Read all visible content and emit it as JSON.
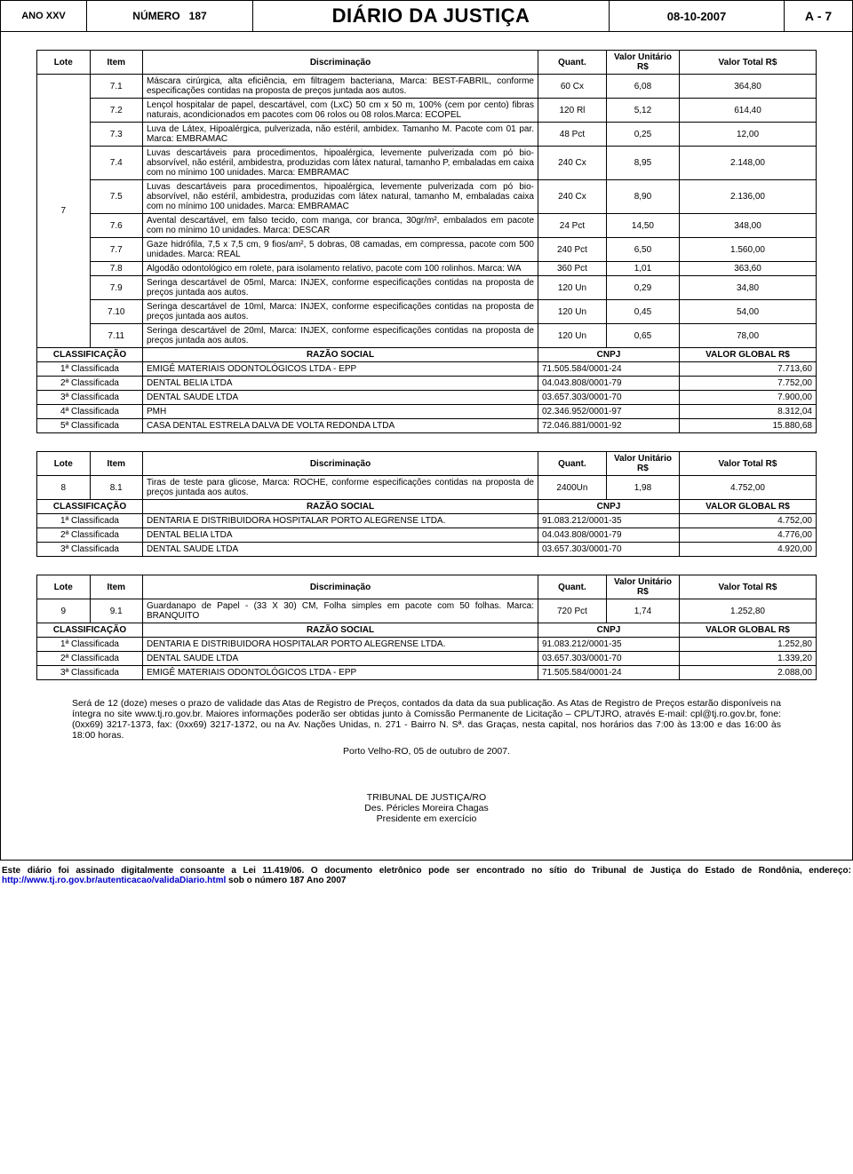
{
  "header": {
    "ano": "ANO XXV",
    "numero_label": "NÚMERO",
    "numero": "187",
    "title": "DIÁRIO DA JUSTIÇA",
    "date": "08-10-2007",
    "page_prefix": "A",
    "page_sep": "-",
    "page_num": "7"
  },
  "columns": {
    "lote": "Lote",
    "item": "Item",
    "disc": "Discriminação",
    "quant": "Quant.",
    "unit": "Valor Unitário R$",
    "total": "Valor Total R$"
  },
  "class_columns": {
    "class": "CLASSIFICAÇÃO",
    "razao": "RAZÃO SOCIAL",
    "cnpj": "CNPJ",
    "valor": "VALOR GLOBAL R$"
  },
  "table1": {
    "lote": "7",
    "rows": [
      {
        "item": "7.1",
        "disc": "Máscara cirúrgica, alta eficiência, em filtragem bacteriana, Marca: BEST-FABRIL, conforme especificações contidas na proposta de preços juntada aos autos.",
        "quant": "60 Cx",
        "unit": "6,08",
        "total": "364,80"
      },
      {
        "item": "7.2",
        "disc": "Lençol hospitalar de papel, descartável, com (LxC) 50 cm x 50 m, 100% (cem por cento) fibras naturais, acondicionados em pacotes com 06 rolos ou 08 rolos.Marca: ECOPEL",
        "quant": "120 Rl",
        "unit": "5,12",
        "total": "614,40"
      },
      {
        "item": "7.3",
        "disc": "Luva de Látex, Hipoalérgica, pulverizada, não estéril, ambidex. Tamanho M. Pacote com 01 par. Marca: EMBRAMAC",
        "quant": "48 Pct",
        "unit": "0,25",
        "total": "12,00"
      },
      {
        "item": "7.4",
        "disc": "Luvas descartáveis para procedimentos, hipoalérgica, levemente pulverizada com pó bio-absorvível, não estéril, ambidestra, produzidas com látex natural, tamanho P, embaladas em caixa com no mínimo 100 unidades. Marca: EMBRAMAC",
        "quant": "240 Cx",
        "unit": "8,95",
        "total": "2.148,00"
      },
      {
        "item": "7.5",
        "disc": "Luvas descartáveis para procedimentos, hipoalérgica, levemente pulverizada com pó bio-absorvível, não estéril, ambidestra, produzidas com látex natural, tamanho M, embaladas caixa com no mínimo 100 unidades. Marca: EMBRAMAC",
        "quant": "240 Cx",
        "unit": "8,90",
        "total": "2.136,00"
      },
      {
        "item": "7.6",
        "disc": "Avental descartável, em falso tecido, com manga, cor branca, 30gr/m², embalados em pacote com no mínimo 10 unidades. Marca: DESCAR",
        "quant": "24 Pct",
        "unit": "14,50",
        "total": "348,00"
      },
      {
        "item": "7.7",
        "disc": "Gaze hidrófila, 7,5 x 7,5 cm, 9 fios/am², 5 dobras, 08 camadas, em compressa, pacote com 500 unidades. Marca: REAL",
        "quant": "240 Pct",
        "unit": "6,50",
        "total": "1.560,00"
      },
      {
        "item": "7.8",
        "disc": "Algodão odontológico em rolete, para isolamento relativo, pacote com 100 rolinhos. Marca: WA",
        "quant": "360 Pct",
        "unit": "1,01",
        "total": "363,60"
      },
      {
        "item": "7.9",
        "disc": "Seringa descartável de 05ml, Marca: INJEX, conforme especificações contidas na proposta de preços juntada aos autos.",
        "quant": "120 Un",
        "unit": "0,29",
        "total": "34,80"
      },
      {
        "item": "7.10",
        "disc": "Seringa descartável de 10ml, Marca: INJEX, conforme especificações contidas na proposta de preços juntada aos autos.",
        "quant": "120 Un",
        "unit": "0,45",
        "total": "54,00"
      },
      {
        "item": "7.11",
        "disc": "Seringa descartável de 20ml, Marca: INJEX, conforme especificações contidas na proposta de preços juntada aos autos.",
        "quant": "120 Un",
        "unit": "0,65",
        "total": "78,00"
      }
    ],
    "classification": [
      {
        "rank": "1ª Classificada",
        "razao": "EMIGÊ MATERIAIS ODONTOLÓGICOS LTDA - EPP",
        "cnpj": "71.505.584/0001-24",
        "valor": "7.713,60"
      },
      {
        "rank": "2ª Classificada",
        "razao": "DENTAL BELIA LTDA",
        "cnpj": "04.043.808/0001-79",
        "valor": "7.752,00"
      },
      {
        "rank": "3ª Classificada",
        "razao": "DENTAL SAUDE LTDA",
        "cnpj": "03.657.303/0001-70",
        "valor": "7.900,00"
      },
      {
        "rank": "4ª Classificada",
        "razao": "PMH",
        "cnpj": "02.346.952/0001-97",
        "valor": "8.312,04"
      },
      {
        "rank": "5ª Classificada",
        "razao": "CASA DENTAL ESTRELA DALVA DE VOLTA REDONDA LTDA",
        "cnpj": "72.046.881/0001-92",
        "valor": "15.880,68"
      }
    ]
  },
  "table2": {
    "lote": "8",
    "rows": [
      {
        "item": "8.1",
        "disc": "Tiras de teste para glicose, Marca: ROCHE, conforme especificações contidas na proposta de preços juntada aos autos.",
        "quant": "2400Un",
        "unit": "1,98",
        "total": "4.752,00"
      }
    ],
    "classification": [
      {
        "rank": "1ª Classificada",
        "razao": "DENTARIA E DISTRIBUIDORA HOSPITALAR PORTO ALEGRENSE LTDA.",
        "cnpj": "91.083.212/0001-35",
        "valor": "4.752,00"
      },
      {
        "rank": "2ª Classificada",
        "razao": "DENTAL BELIA LTDA",
        "cnpj": "04.043.808/0001-79",
        "valor": "4.776,00"
      },
      {
        "rank": "3ª Classificada",
        "razao": "DENTAL SAUDE LTDA",
        "cnpj": "03.657.303/0001-70",
        "valor": "4.920,00"
      }
    ]
  },
  "table3": {
    "lote": "9",
    "rows": [
      {
        "item": "9.1",
        "disc": "Guardanapo de Papel - (33 X 30) CM, Folha simples em pacote com 50 folhas. Marca: BRANQUITO",
        "quant": "720 Pct",
        "unit": "1,74",
        "total": "1.252,80"
      }
    ],
    "classification": [
      {
        "rank": "1ª Classificada",
        "razao": "DENTARIA E DISTRIBUIDORA HOSPITALAR PORTO ALEGRENSE LTDA.",
        "cnpj": "91.083.212/0001-35",
        "valor": "1.252,80"
      },
      {
        "rank": "2ª Classificada",
        "razao": "DENTAL SAUDE LTDA",
        "cnpj": "03.657.303/0001-70",
        "valor": "1.339,20"
      },
      {
        "rank": "3ª Classificada",
        "razao": "EMIGÊ MATERIAIS ODONTOLÓGICOS LTDA - EPP",
        "cnpj": "71.505.584/0001-24",
        "valor": "2.088,00"
      }
    ]
  },
  "footer": {
    "para": "Será de 12 (doze) meses o prazo de validade das Atas de Registro de Preços, contados da data da sua publicação. As Atas de Registro de Preços estarão disponíveis na íntegra no site www.tj.ro.gov.br. Maiores informações poderão ser obtidas junto à Comissão Permanente de Licitação – CPL/TJRO, através E-mail: cpl@tj.ro.gov.br, fone: (0xx69) 3217-1373, fax: (0xx69) 3217-1372, ou na Av. Nações Unidas, n. 271 - Bairro N. Sª. das Graças, nesta capital, nos horários das 7:00 às 13:00 e das 16:00 às 18:00 horas.",
    "place_date": "Porto Velho-RO, 05 de outubro de 2007.",
    "sign1": "TRIBUNAL DE JUSTIÇA/RO",
    "sign2": "Des. Péricles Moreira Chagas",
    "sign3": "Presidente em exercício"
  },
  "bottom": {
    "text1": "Este diário foi assinado digitalmente consoante a Lei 11.419/06. O documento eletrônico pode ser encontrado no sítio do Tribunal de Justiça do Estado de Rondônia, endereço: ",
    "link": "http://www.tj.ro.gov.br/autenticacao/validaDiario.html",
    "text2": " sob o número 187 Ano 2007"
  }
}
